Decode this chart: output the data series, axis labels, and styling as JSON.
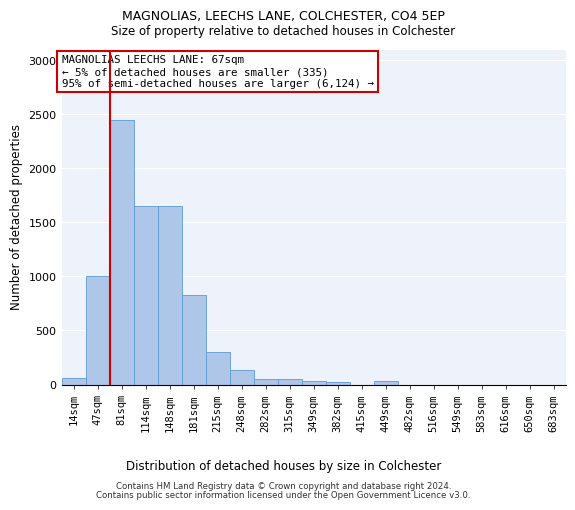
{
  "title": "MAGNOLIAS, LEECHS LANE, COLCHESTER, CO4 5EP",
  "subtitle": "Size of property relative to detached houses in Colchester",
  "xlabel": "Distribution of detached houses by size in Colchester",
  "ylabel": "Number of detached properties",
  "categories": [
    "14sqm",
    "47sqm",
    "81sqm",
    "114sqm",
    "148sqm",
    "181sqm",
    "215sqm",
    "248sqm",
    "282sqm",
    "315sqm",
    "349sqm",
    "382sqm",
    "415sqm",
    "449sqm",
    "482sqm",
    "516sqm",
    "549sqm",
    "583sqm",
    "616sqm",
    "650sqm",
    "683sqm"
  ],
  "values": [
    60,
    1000,
    2450,
    1650,
    1650,
    830,
    300,
    135,
    55,
    50,
    35,
    20,
    0,
    30,
    0,
    0,
    0,
    0,
    0,
    0,
    0
  ],
  "bar_color": "#aec6e8",
  "bar_edge_color": "#5b9bd5",
  "background_color": "#eef3fb",
  "vline_color": "#cc0000",
  "annotation_title": "MAGNOLIAS LEECHS LANE: 67sqm",
  "annotation_line1": "← 5% of detached houses are smaller (335)",
  "annotation_line2": "95% of semi-detached houses are larger (6,124) →",
  "annotation_box_color": "#cc0000",
  "ylim": [
    0,
    3100
  ],
  "yticks": [
    0,
    500,
    1000,
    1500,
    2000,
    2500,
    3000
  ],
  "footer_line1": "Contains HM Land Registry data © Crown copyright and database right 2024.",
  "footer_line2": "Contains public sector information licensed under the Open Government Licence v3.0."
}
